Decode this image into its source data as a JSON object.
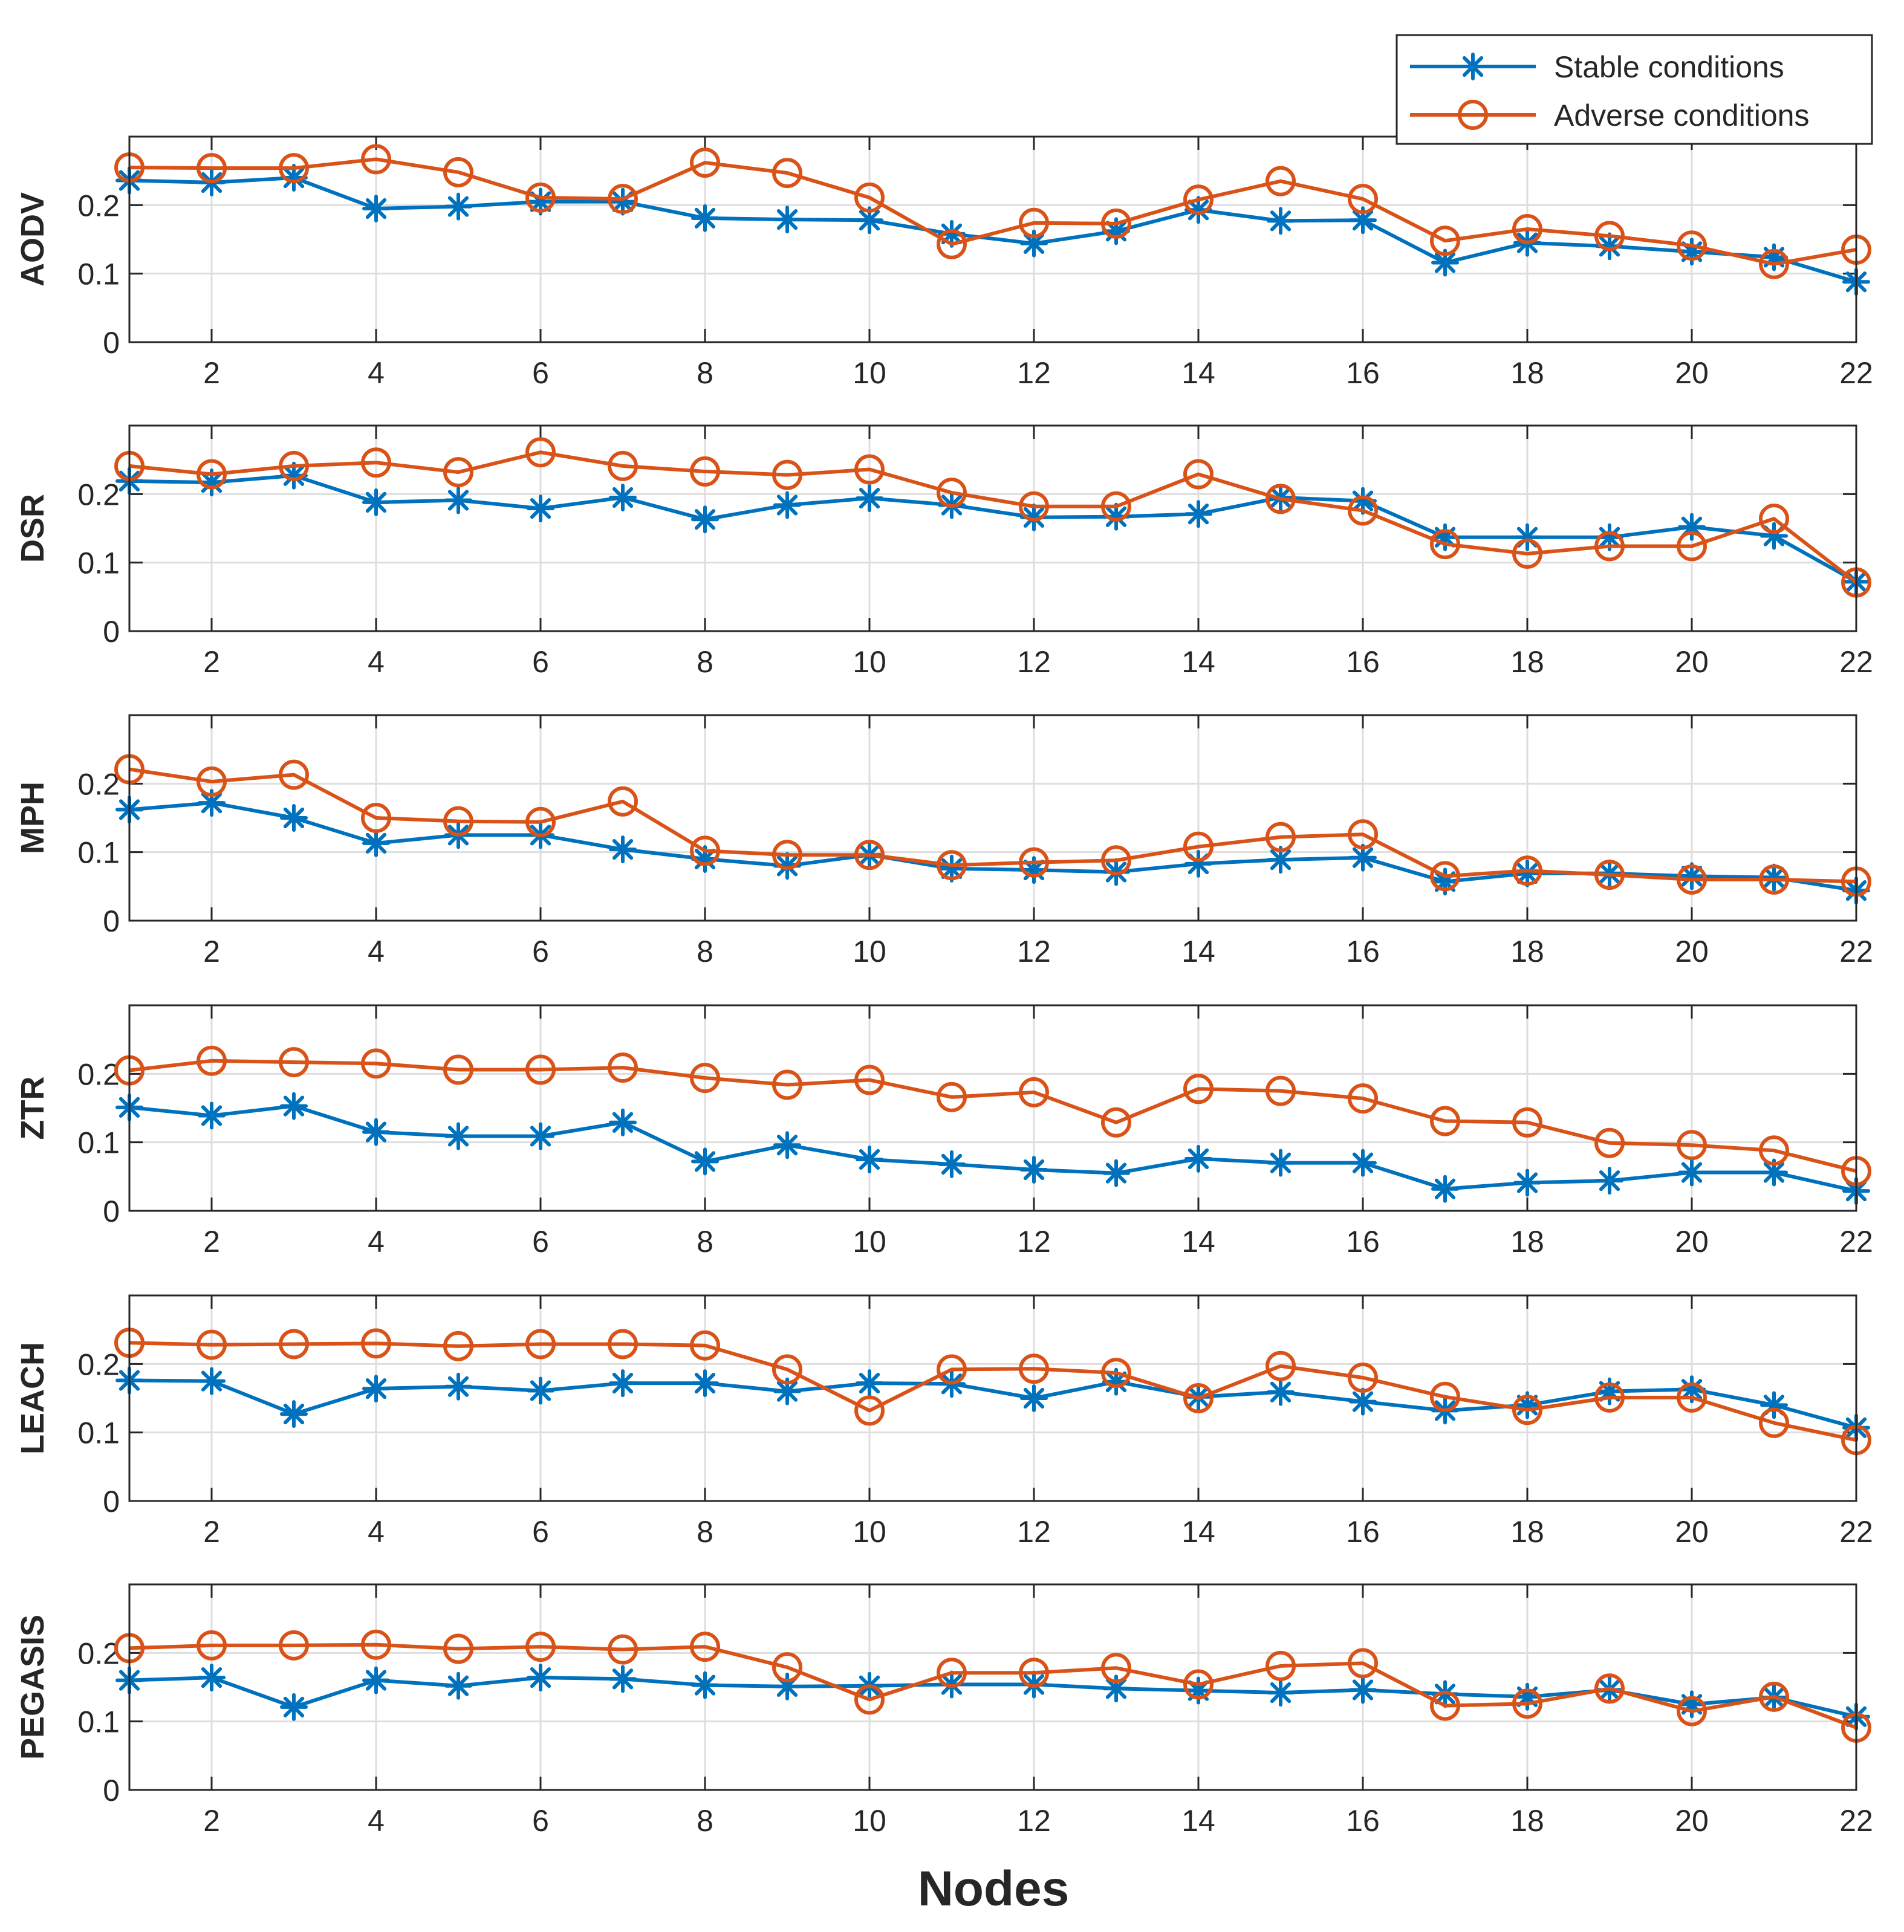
{
  "chart_data": [
    {
      "type": "line",
      "ylabel": "AODV",
      "xlabel": "",
      "xlim": [
        1,
        22
      ],
      "ylim": [
        0,
        0.3
      ],
      "yticks": [
        0,
        0.1,
        0.2
      ],
      "ytick_labels": [
        "0",
        "0.1",
        "0.2"
      ],
      "xticks": [
        2,
        4,
        6,
        8,
        10,
        12,
        14,
        16,
        18,
        20,
        22
      ],
      "xtick_labels": [
        "2",
        "4",
        "6",
        "8",
        "10",
        "12",
        "14",
        "16",
        "18",
        "20",
        "22"
      ],
      "grid": true,
      "x": [
        1,
        2,
        3,
        4,
        5,
        6,
        7,
        8,
        9,
        10,
        11,
        12,
        13,
        14,
        15,
        16,
        17,
        18,
        19,
        20,
        21,
        22
      ],
      "series": [
        {
          "name": "Stable conditions",
          "values": [
            0.236,
            0.233,
            0.24,
            0.195,
            0.198,
            0.205,
            0.205,
            0.181,
            0.179,
            0.178,
            0.158,
            0.144,
            0.162,
            0.193,
            0.177,
            0.178,
            0.116,
            0.145,
            0.14,
            0.132,
            0.124,
            0.088
          ]
        },
        {
          "name": "Adverse conditions",
          "values": [
            0.255,
            0.254,
            0.254,
            0.267,
            0.248,
            0.211,
            0.209,
            0.262,
            0.247,
            0.211,
            0.143,
            0.174,
            0.173,
            0.208,
            0.235,
            0.209,
            0.148,
            0.165,
            0.155,
            0.141,
            0.114,
            0.135
          ]
        }
      ]
    },
    {
      "type": "line",
      "ylabel": "DSR",
      "xlabel": "",
      "xlim": [
        1,
        22
      ],
      "ylim": [
        0,
        0.3
      ],
      "yticks": [
        0,
        0.1,
        0.2
      ],
      "ytick_labels": [
        "0",
        "0.1",
        "0.2"
      ],
      "xticks": [
        2,
        4,
        6,
        8,
        10,
        12,
        14,
        16,
        18,
        20,
        22
      ],
      "xtick_labels": [
        "2",
        "4",
        "6",
        "8",
        "10",
        "12",
        "14",
        "16",
        "18",
        "20",
        "22"
      ],
      "grid": true,
      "x": [
        1,
        2,
        3,
        4,
        5,
        6,
        7,
        8,
        9,
        10,
        11,
        12,
        13,
        14,
        15,
        16,
        17,
        18,
        19,
        20,
        21,
        22
      ],
      "series": [
        {
          "name": "Stable conditions",
          "values": [
            0.219,
            0.217,
            0.227,
            0.188,
            0.191,
            0.179,
            0.195,
            0.163,
            0.184,
            0.194,
            0.184,
            0.166,
            0.167,
            0.171,
            0.195,
            0.19,
            0.137,
            0.137,
            0.137,
            0.152,
            0.139,
            0.072
          ]
        },
        {
          "name": "Adverse conditions",
          "values": [
            0.241,
            0.229,
            0.241,
            0.246,
            0.232,
            0.261,
            0.241,
            0.233,
            0.228,
            0.236,
            0.202,
            0.182,
            0.182,
            0.229,
            0.193,
            0.176,
            0.127,
            0.113,
            0.124,
            0.124,
            0.164,
            0.071
          ]
        }
      ]
    },
    {
      "type": "line",
      "ylabel": "MPH",
      "xlabel": "",
      "xlim": [
        1,
        22
      ],
      "ylim": [
        0,
        0.3
      ],
      "yticks": [
        0,
        0.1,
        0.2
      ],
      "ytick_labels": [
        "0",
        "0.1",
        "0.2"
      ],
      "xticks": [
        2,
        4,
        6,
        8,
        10,
        12,
        14,
        16,
        18,
        20,
        22
      ],
      "xtick_labels": [
        "2",
        "4",
        "6",
        "8",
        "10",
        "12",
        "14",
        "16",
        "18",
        "20",
        "22"
      ],
      "grid": true,
      "x": [
        1,
        2,
        3,
        4,
        5,
        6,
        7,
        8,
        9,
        10,
        11,
        12,
        13,
        14,
        15,
        16,
        17,
        18,
        19,
        20,
        21,
        22
      ],
      "series": [
        {
          "name": "Stable conditions",
          "values": [
            0.162,
            0.172,
            0.15,
            0.113,
            0.125,
            0.125,
            0.104,
            0.09,
            0.08,
            0.096,
            0.076,
            0.074,
            0.071,
            0.083,
            0.089,
            0.092,
            0.057,
            0.069,
            0.069,
            0.065,
            0.063,
            0.044
          ]
        },
        {
          "name": "Adverse conditions",
          "values": [
            0.221,
            0.203,
            0.213,
            0.15,
            0.145,
            0.144,
            0.174,
            0.102,
            0.096,
            0.096,
            0.081,
            0.085,
            0.088,
            0.108,
            0.122,
            0.126,
            0.065,
            0.073,
            0.067,
            0.06,
            0.06,
            0.057
          ]
        }
      ]
    },
    {
      "type": "line",
      "ylabel": "ZTR",
      "xlabel": "",
      "xlim": [
        1,
        22
      ],
      "ylim": [
        0,
        0.3
      ],
      "yticks": [
        0,
        0.1,
        0.2
      ],
      "ytick_labels": [
        "0",
        "0.1",
        "0.2"
      ],
      "xticks": [
        2,
        4,
        6,
        8,
        10,
        12,
        14,
        16,
        18,
        20,
        22
      ],
      "xtick_labels": [
        "2",
        "4",
        "6",
        "8",
        "10",
        "12",
        "14",
        "16",
        "18",
        "20",
        "22"
      ],
      "grid": true,
      "x": [
        1,
        2,
        3,
        4,
        5,
        6,
        7,
        8,
        9,
        10,
        11,
        12,
        13,
        14,
        15,
        16,
        17,
        18,
        19,
        20,
        21,
        22
      ],
      "series": [
        {
          "name": "Stable conditions",
          "values": [
            0.151,
            0.139,
            0.153,
            0.115,
            0.109,
            0.109,
            0.129,
            0.072,
            0.096,
            0.075,
            0.068,
            0.06,
            0.055,
            0.076,
            0.07,
            0.07,
            0.032,
            0.041,
            0.044,
            0.056,
            0.056,
            0.029
          ]
        },
        {
          "name": "Adverse conditions",
          "values": [
            0.205,
            0.219,
            0.217,
            0.215,
            0.206,
            0.206,
            0.209,
            0.194,
            0.184,
            0.191,
            0.166,
            0.173,
            0.129,
            0.178,
            0.175,
            0.164,
            0.131,
            0.129,
            0.099,
            0.096,
            0.088,
            0.058
          ]
        }
      ]
    },
    {
      "type": "line",
      "ylabel": "LEACH",
      "xlabel": "",
      "xlim": [
        1,
        22
      ],
      "ylim": [
        0,
        0.3
      ],
      "yticks": [
        0,
        0.1,
        0.2
      ],
      "ytick_labels": [
        "0",
        "0.1",
        "0.2"
      ],
      "xticks": [
        2,
        4,
        6,
        8,
        10,
        12,
        14,
        16,
        18,
        20,
        22
      ],
      "xtick_labels": [
        "2",
        "4",
        "6",
        "8",
        "10",
        "12",
        "14",
        "16",
        "18",
        "20",
        "22"
      ],
      "grid": true,
      "x": [
        1,
        2,
        3,
        4,
        5,
        6,
        7,
        8,
        9,
        10,
        11,
        12,
        13,
        14,
        15,
        16,
        17,
        18,
        19,
        20,
        21,
        22
      ],
      "series": [
        {
          "name": "Stable conditions",
          "values": [
            0.176,
            0.175,
            0.127,
            0.164,
            0.167,
            0.161,
            0.172,
            0.172,
            0.16,
            0.172,
            0.171,
            0.15,
            0.174,
            0.152,
            0.159,
            0.145,
            0.132,
            0.14,
            0.16,
            0.163,
            0.14,
            0.107
          ]
        },
        {
          "name": "Adverse conditions",
          "values": [
            0.231,
            0.228,
            0.229,
            0.23,
            0.226,
            0.229,
            0.229,
            0.227,
            0.192,
            0.132,
            0.192,
            0.193,
            0.187,
            0.15,
            0.197,
            0.18,
            0.152,
            0.133,
            0.151,
            0.151,
            0.114,
            0.089
          ]
        }
      ]
    },
    {
      "type": "line",
      "ylabel": "PEGASIS",
      "xlabel": "Nodes",
      "xlim": [
        1,
        22
      ],
      "ylim": [
        0,
        0.3
      ],
      "yticks": [
        0,
        0.1,
        0.2
      ],
      "ytick_labels": [
        "0",
        "0.1",
        "0.2"
      ],
      "xticks": [
        2,
        4,
        6,
        8,
        10,
        12,
        14,
        16,
        18,
        20,
        22
      ],
      "xtick_labels": [
        "2",
        "4",
        "6",
        "8",
        "10",
        "12",
        "14",
        "16",
        "18",
        "20",
        "22"
      ],
      "grid": true,
      "x": [
        1,
        2,
        3,
        4,
        5,
        6,
        7,
        8,
        9,
        10,
        11,
        12,
        13,
        14,
        15,
        16,
        17,
        18,
        19,
        20,
        21,
        22
      ],
      "series": [
        {
          "name": "Stable conditions",
          "values": [
            0.16,
            0.164,
            0.121,
            0.16,
            0.152,
            0.164,
            0.162,
            0.153,
            0.151,
            0.152,
            0.154,
            0.154,
            0.148,
            0.145,
            0.142,
            0.146,
            0.14,
            0.136,
            0.146,
            0.125,
            0.135,
            0.107
          ]
        },
        {
          "name": "Adverse conditions",
          "values": [
            0.207,
            0.211,
            0.211,
            0.212,
            0.206,
            0.209,
            0.205,
            0.209,
            0.179,
            0.132,
            0.171,
            0.171,
            0.178,
            0.154,
            0.181,
            0.185,
            0.123,
            0.126,
            0.148,
            0.115,
            0.136,
            0.091
          ]
        }
      ]
    }
  ],
  "legend": {
    "location": "top-right",
    "entries": [
      {
        "label": "Stable conditions",
        "color": "#0072BD",
        "marker": "asterisk"
      },
      {
        "label": "Adverse conditions",
        "color": "#D95319",
        "marker": "circle"
      }
    ]
  },
  "figure": {
    "xlabel": "Nodes"
  },
  "colors": {
    "stable": "#0072BD",
    "adverse": "#D95319",
    "grid": "#dedede",
    "axis": "#262626"
  }
}
